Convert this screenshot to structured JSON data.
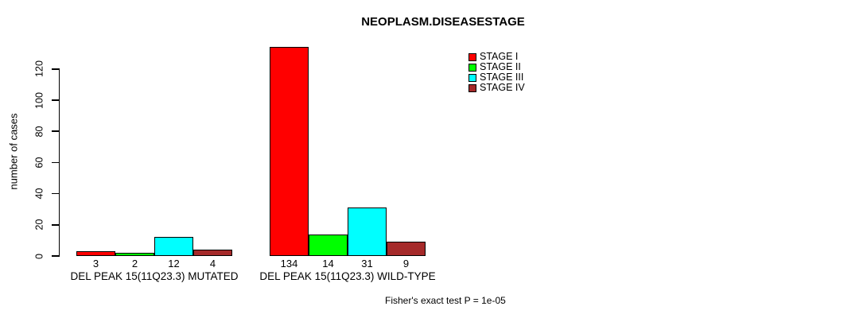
{
  "chart_data": {
    "type": "bar",
    "title": "NEOPLASM.DISEASESTAGE",
    "xlabel": "",
    "ylabel": "number of cases",
    "categories": [
      "DEL PEAK 15(11Q23.3) MUTATED",
      "DEL PEAK 15(11Q23.3) WILD-TYPE"
    ],
    "series": [
      {
        "name": "STAGE I",
        "color": "#FF0000",
        "values": [
          3,
          134
        ]
      },
      {
        "name": "STAGE II",
        "color": "#00FF00",
        "values": [
          2,
          14
        ]
      },
      {
        "name": "STAGE III",
        "color": "#00FFFF",
        "values": [
          12,
          31
        ]
      },
      {
        "name": "STAGE IV",
        "color": "#A52A2A",
        "values": [
          4,
          9
        ]
      }
    ],
    "bar_value_labels": [
      [
        3,
        2,
        12,
        4
      ],
      [
        134,
        14,
        31,
        9
      ]
    ],
    "yticks": [
      0,
      20,
      40,
      60,
      80,
      100,
      120
    ],
    "ylim": [
      0,
      134
    ],
    "grid": false,
    "legend_position": "top-right",
    "annotation": "Fisher's exact test P = 1e-05",
    "axis_color": "#000000",
    "background_color": "#FFFFFF"
  }
}
